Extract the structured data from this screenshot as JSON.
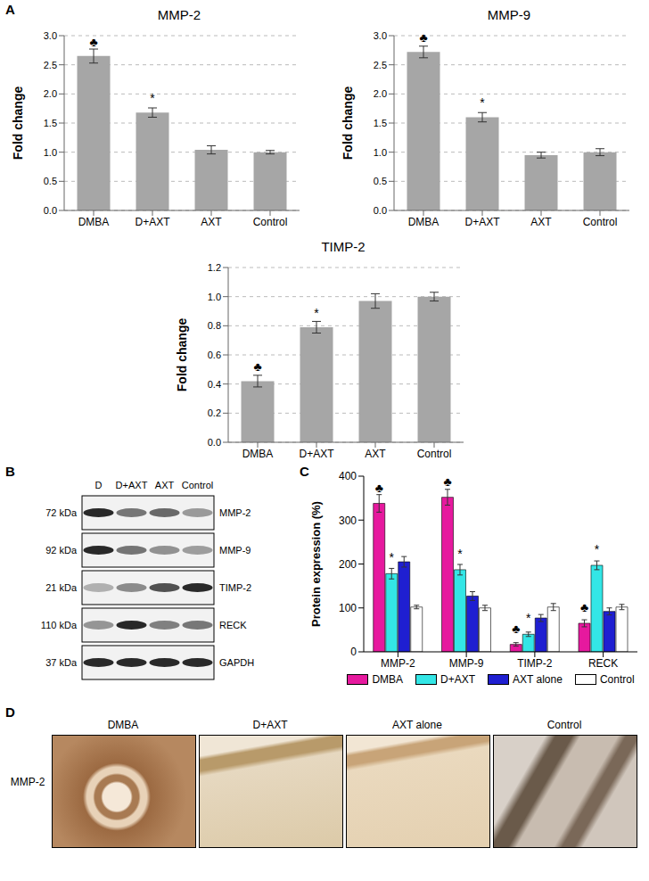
{
  "panel_labels": [
    "A",
    "B",
    "C",
    "D"
  ],
  "chart_data": [
    {
      "type": "bar",
      "title": "MMP-2",
      "y_label": "Fold change",
      "categories": [
        "DMBA",
        "D+AXT",
        "AXT",
        "Control"
      ],
      "values": [
        2.65,
        1.68,
        1.04,
        1.0
      ],
      "errors": [
        0.12,
        0.08,
        0.07,
        0.03
      ],
      "annotations": [
        "♣",
        "*",
        null,
        null
      ],
      "color": "#a6a6a6",
      "ylim": [
        0,
        3
      ],
      "yticks": [
        {
          "value": 0,
          "label": "0.0"
        },
        {
          "value": 0.5,
          "label": "0.5"
        },
        {
          "value": 1,
          "label": "1.0"
        },
        {
          "value": 1.5,
          "label": "1.5"
        },
        {
          "value": 2,
          "label": "2.0"
        },
        {
          "value": 2.5,
          "label": "2.5"
        },
        {
          "value": 3,
          "label": "3.0"
        }
      ],
      "grid": true
    },
    {
      "type": "bar",
      "title": "MMP-9",
      "y_label": "Fold change",
      "categories": [
        "DMBA",
        "D+AXT",
        "AXT",
        "Control"
      ],
      "values": [
        2.72,
        1.6,
        0.95,
        1.0
      ],
      "errors": [
        0.1,
        0.08,
        0.05,
        0.06
      ],
      "annotations": [
        "♣",
        "*",
        null,
        null
      ],
      "color": "#a6a6a6",
      "ylim": [
        0,
        3
      ],
      "yticks": [
        {
          "value": 0,
          "label": "0.0"
        },
        {
          "value": 0.5,
          "label": "0.5"
        },
        {
          "value": 1,
          "label": "1.0"
        },
        {
          "value": 1.5,
          "label": "1.5"
        },
        {
          "value": 2,
          "label": "2.0"
        },
        {
          "value": 2.5,
          "label": "2.5"
        },
        {
          "value": 3,
          "label": "3.0"
        }
      ],
      "grid": true
    },
    {
      "type": "bar",
      "title": "TIMP-2",
      "y_label": "Fold change",
      "categories": [
        "DMBA",
        "D+AXT",
        "AXT",
        "Control"
      ],
      "values": [
        0.42,
        0.79,
        0.97,
        1.0
      ],
      "errors": [
        0.04,
        0.04,
        0.05,
        0.03
      ],
      "annotations": [
        "♣",
        "*",
        null,
        null
      ],
      "color": "#a6a6a6",
      "ylim": [
        0,
        1.2
      ],
      "yticks": [
        {
          "value": 0,
          "label": "0.0"
        },
        {
          "value": 0.2,
          "label": "0.2"
        },
        {
          "value": 0.4,
          "label": "0.4"
        },
        {
          "value": 0.6,
          "label": "0.6"
        },
        {
          "value": 0.8,
          "label": "0.8"
        },
        {
          "value": 1,
          "label": "1.0"
        },
        {
          "value": 1.2,
          "label": "1.2"
        }
      ],
      "grid": true
    },
    {
      "type": "bar",
      "y_label": "Protein expression (%)",
      "categories": [
        "MMP-2",
        "MMP-9",
        "TIMP-2",
        "RECK"
      ],
      "series": [
        {
          "name": "DMBA",
          "color": "#e6199e",
          "values": [
            338,
            352,
            17,
            65
          ],
          "errors": [
            20,
            18,
            4,
            8
          ],
          "annotations": [
            "♣",
            "♣",
            "♣",
            "♣"
          ]
        },
        {
          "name": "D+AXT",
          "color": "#33e6e6",
          "values": [
            178,
            187,
            40,
            197
          ],
          "errors": [
            12,
            12,
            5,
            10
          ],
          "annotations": [
            "*",
            "*",
            "*",
            "*"
          ]
        },
        {
          "name": "AXT alone",
          "color": "#1f1fd1",
          "values": [
            205,
            127,
            77,
            92
          ],
          "errors": [
            12,
            10,
            8,
            8
          ],
          "annotations": [
            null,
            null,
            null,
            null
          ]
        },
        {
          "name": "Control",
          "color": "#ffffff",
          "values": [
            102,
            100,
            102,
            102
          ],
          "errors": [
            4,
            6,
            8,
            6
          ],
          "annotations": [
            null,
            null,
            null,
            null
          ]
        }
      ],
      "ylim": [
        0,
        400
      ],
      "yticks": [
        0,
        100,
        200,
        300,
        400
      ],
      "legend": "bottom",
      "grid": false
    }
  ],
  "blot": {
    "lanes": [
      "D",
      "D+AXT",
      "AXT",
      "Control"
    ],
    "rows": [
      {
        "size": "72 kDa",
        "protein": "MMP-2"
      },
      {
        "size": "92 kDa",
        "protein": "MMP-9"
      },
      {
        "size": "21 kDa",
        "protein": "TIMP-2"
      },
      {
        "size": "110 kDa",
        "protein": "RECK"
      },
      {
        "size": "37 kDa",
        "protein": "GAPDH"
      }
    ]
  },
  "ihc": {
    "columns": [
      "DMBA",
      "D+AXT",
      "AXT alone",
      "Control"
    ],
    "row": "MMP-2"
  }
}
